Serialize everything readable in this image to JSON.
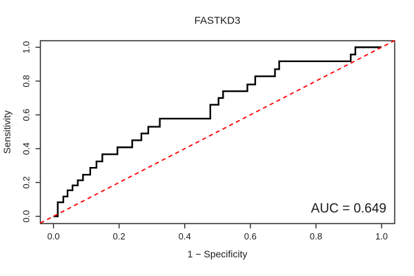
{
  "figure": {
    "kind": "ROC curve plot (R base graphics style)"
  },
  "chart_data": {
    "type": "line",
    "subtype": "roc-step-curve",
    "title": "FASTKD3",
    "xlabel": "1 − Specificity",
    "ylabel": "Sensitivity",
    "annotation": "AUC = 0.649",
    "auc": 0.649,
    "xlim": [
      0,
      1
    ],
    "ylim": [
      0,
      1
    ],
    "grid": false,
    "legend": "none",
    "x_ticks": [
      "0.0",
      "0.2",
      "0.4",
      "0.6",
      "0.8",
      "1.0"
    ],
    "y_ticks": [
      "0.0",
      "0.2",
      "0.4",
      "0.6",
      "0.8",
      "1.0"
    ],
    "x_tick_values": [
      0,
      0.2,
      0.4,
      0.6,
      0.8,
      1.0
    ],
    "y_tick_values": [
      0,
      0.2,
      0.4,
      0.6,
      0.8,
      1.0
    ],
    "series": [
      {
        "name": "ROC curve",
        "draw": "step",
        "color": "#000000",
        "line_width": 2.4,
        "points": [
          [
            0.0,
            0.0
          ],
          [
            0.013,
            0.083
          ],
          [
            0.03,
            0.117
          ],
          [
            0.043,
            0.154
          ],
          [
            0.058,
            0.183
          ],
          [
            0.074,
            0.213
          ],
          [
            0.09,
            0.246
          ],
          [
            0.112,
            0.287
          ],
          [
            0.131,
            0.325
          ],
          [
            0.149,
            0.367
          ],
          [
            0.195,
            0.408
          ],
          [
            0.24,
            0.45
          ],
          [
            0.268,
            0.49
          ],
          [
            0.289,
            0.53
          ],
          [
            0.324,
            0.578
          ],
          [
            0.478,
            0.66
          ],
          [
            0.503,
            0.7
          ],
          [
            0.517,
            0.74
          ],
          [
            0.591,
            0.78
          ],
          [
            0.615,
            0.828
          ],
          [
            0.675,
            0.87
          ],
          [
            0.688,
            0.917
          ],
          [
            0.906,
            0.957
          ],
          [
            0.92,
            1.0
          ],
          [
            1.0,
            1.0
          ]
        ]
      },
      {
        "name": "chance diagonal",
        "draw": "line",
        "style": "dashed",
        "color": "#ff0000",
        "line_width": 1.8,
        "points": [
          [
            0,
            0
          ],
          [
            1,
            1
          ]
        ]
      }
    ]
  },
  "colors": {
    "background": "#ffffff",
    "curve": "#000000",
    "diagonal": "#ff0000",
    "axis": "#2a2a2a",
    "text": "#1a1a1a"
  }
}
